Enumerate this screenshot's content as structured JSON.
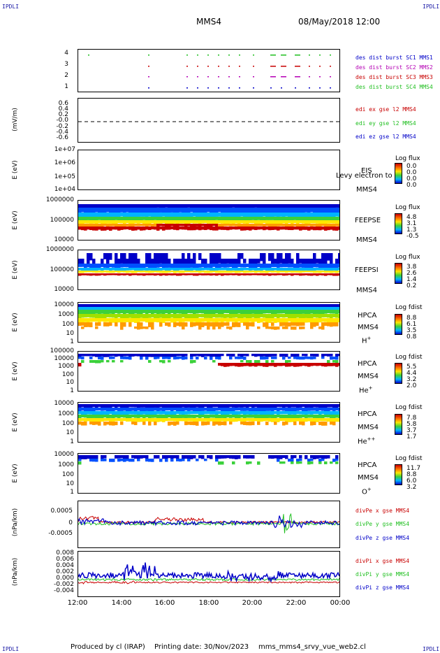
{
  "corner_labels": {
    "tl": "IPDLI",
    "tr": "IPDLI",
    "bl": "IPDLI",
    "br": "IPDLI"
  },
  "header": {
    "spacecraft": "MMS4",
    "datetime": "08/May/2018 12:00"
  },
  "x_ticks": [
    "12:00",
    "14:00",
    "16:00",
    "18:00",
    "20:00",
    "22:00",
    "00:00"
  ],
  "footer": {
    "produced": "Produced by cl (IRAP)",
    "printing": "Printing date: 30/Nov/2023",
    "file": "mms_mms4_srvy_vue_web2.cl"
  },
  "colors": {
    "red": "#c80000",
    "green": "#1fbf1f",
    "blue": "#0000c8",
    "magenta": "#b400b4"
  },
  "chart_data": [
    {
      "type": "scatter",
      "id": "burst",
      "yticks": [
        "4",
        "3",
        "2",
        "1"
      ],
      "legend": [
        "des dist burst SC1 MMS1",
        "des dist burst SC2 MMS2",
        "des dist burst SC3 MMS3",
        "des dist burst SC4 MMS4"
      ]
    },
    {
      "type": "line",
      "id": "edi",
      "ylabel": "(mV/m)",
      "yticks": [
        "0.6",
        "0.4",
        "0.2",
        "-0.0",
        "-0.2",
        "-0.4",
        "-0.6"
      ],
      "ylim": [
        -0.6,
        0.6
      ],
      "legend": [
        "edi ex gse l2 MMS4",
        "edi ey gse l2 MMS4",
        "edi ez gse l2 MMS4"
      ]
    },
    {
      "type": "heatmap",
      "id": "eis",
      "ylabel": "E (eV)",
      "yticks": [
        "1e+07",
        "1e+06",
        "1e+05",
        "1e+04"
      ],
      "instrument": "EIS",
      "overlay": "Levy electron to",
      "sc": "MMS4",
      "cb_title": "Log flux",
      "cb_values": [
        "0.0",
        "0.0",
        "0.0",
        "0.0"
      ]
    },
    {
      "type": "heatmap",
      "id": "feepse",
      "ylabel": "E (eV)",
      "yticks": [
        "1000000",
        "100000",
        "10000"
      ],
      "instrument": "FEEPSE",
      "sc": "MMS4",
      "cb_title": "Log flux",
      "cb_values": [
        "4.8",
        "3.1",
        "1.3",
        "-0.5"
      ]
    },
    {
      "type": "heatmap",
      "id": "feepsi",
      "ylabel": "E (eV)",
      "yticks": [
        "1000000",
        "100000",
        "10000"
      ],
      "instrument": "FEEPSI",
      "sc": "MMS4",
      "cb_title": "Log flux",
      "cb_values": [
        "3.8",
        "2.6",
        "1.4",
        "0.2"
      ]
    },
    {
      "type": "heatmap",
      "id": "hpca_h",
      "ylabel": "E (eV)",
      "yticks": [
        "10000",
        "1000",
        "100",
        "10",
        "1"
      ],
      "instrument": "HPCA",
      "sc": "MMS4",
      "species": "H",
      "charge": "+",
      "cb_title": "Log fdist",
      "cb_values": [
        "8.8",
        "6.1",
        "3.5",
        "0.8"
      ]
    },
    {
      "type": "heatmap",
      "id": "hpca_he",
      "ylabel": "E (eV)",
      "yticks": [
        "100000",
        "10000",
        "1000",
        "100",
        "10",
        "1"
      ],
      "instrument": "HPCA",
      "sc": "MMS4",
      "species": "He",
      "charge": "+",
      "cb_title": "Log fdist",
      "cb_values": [
        "5.5",
        "4.4",
        "3.2",
        "2.0"
      ]
    },
    {
      "type": "heatmap",
      "id": "hpca_hepp",
      "ylabel": "E (eV)",
      "yticks": [
        "10000",
        "1000",
        "100",
        "10",
        "1"
      ],
      "instrument": "HPCA",
      "sc": "MMS4",
      "species": "He",
      "charge": "++",
      "cb_title": "Log fdist",
      "cb_values": [
        "7.8",
        "5.8",
        "3.7",
        "1.7"
      ]
    },
    {
      "type": "heatmap",
      "id": "hpca_o",
      "ylabel": "E (eV)",
      "yticks": [
        "10000",
        "1000",
        "100",
        "10",
        "1"
      ],
      "instrument": "HPCA",
      "sc": "MMS4",
      "species": "O",
      "charge": "+",
      "cb_title": "Log fdist",
      "cb_values": [
        "11.7",
        "8.8",
        "6.0",
        "3.2"
      ]
    },
    {
      "type": "line",
      "id": "divpe",
      "ylabel": "(nPa/km)",
      "yticks": [
        "0.0005",
        "0",
        "-0.0005"
      ],
      "ylim": [
        -0.0008,
        0.0008
      ],
      "legend": [
        "divPe x gse MMS4",
        "divPe y gse MMS4",
        "divPe z gse MMS4"
      ]
    },
    {
      "type": "line",
      "id": "divpi",
      "ylabel": "(nPa/km)",
      "yticks": [
        "0.008",
        "0.006",
        "0.004",
        "0.002",
        "0.000",
        "-0.002",
        "-0.004"
      ],
      "ylim": [
        -0.004,
        0.008
      ],
      "legend": [
        "divPi x gse MMS4",
        "divPi y gse MMS4",
        "divPi z gse MMS4"
      ]
    }
  ]
}
